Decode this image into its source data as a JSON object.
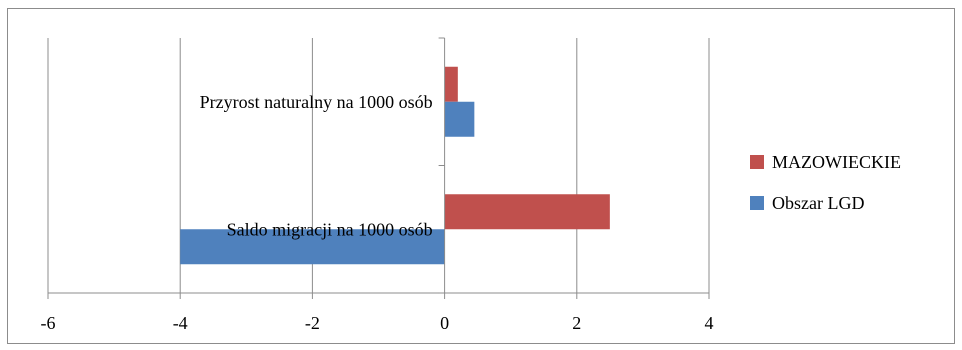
{
  "chart_data": {
    "type": "bar",
    "orientation": "horizontal",
    "categories": [
      "Przyrost naturalny na 1000 osób",
      "Saldo migracji na 1000 osób"
    ],
    "series": [
      {
        "name": "MAZOWIECKIE",
        "color": "#c0504d",
        "values": [
          0.2,
          2.5
        ]
      },
      {
        "name": "Obszar LGD",
        "color": "#4f81bd",
        "values": [
          0.45,
          -4.0
        ]
      }
    ],
    "xlim": [
      -6,
      4
    ],
    "xticks": [
      -6,
      -4,
      -2,
      0,
      2,
      4
    ],
    "grid": true,
    "legend_position": "right"
  }
}
